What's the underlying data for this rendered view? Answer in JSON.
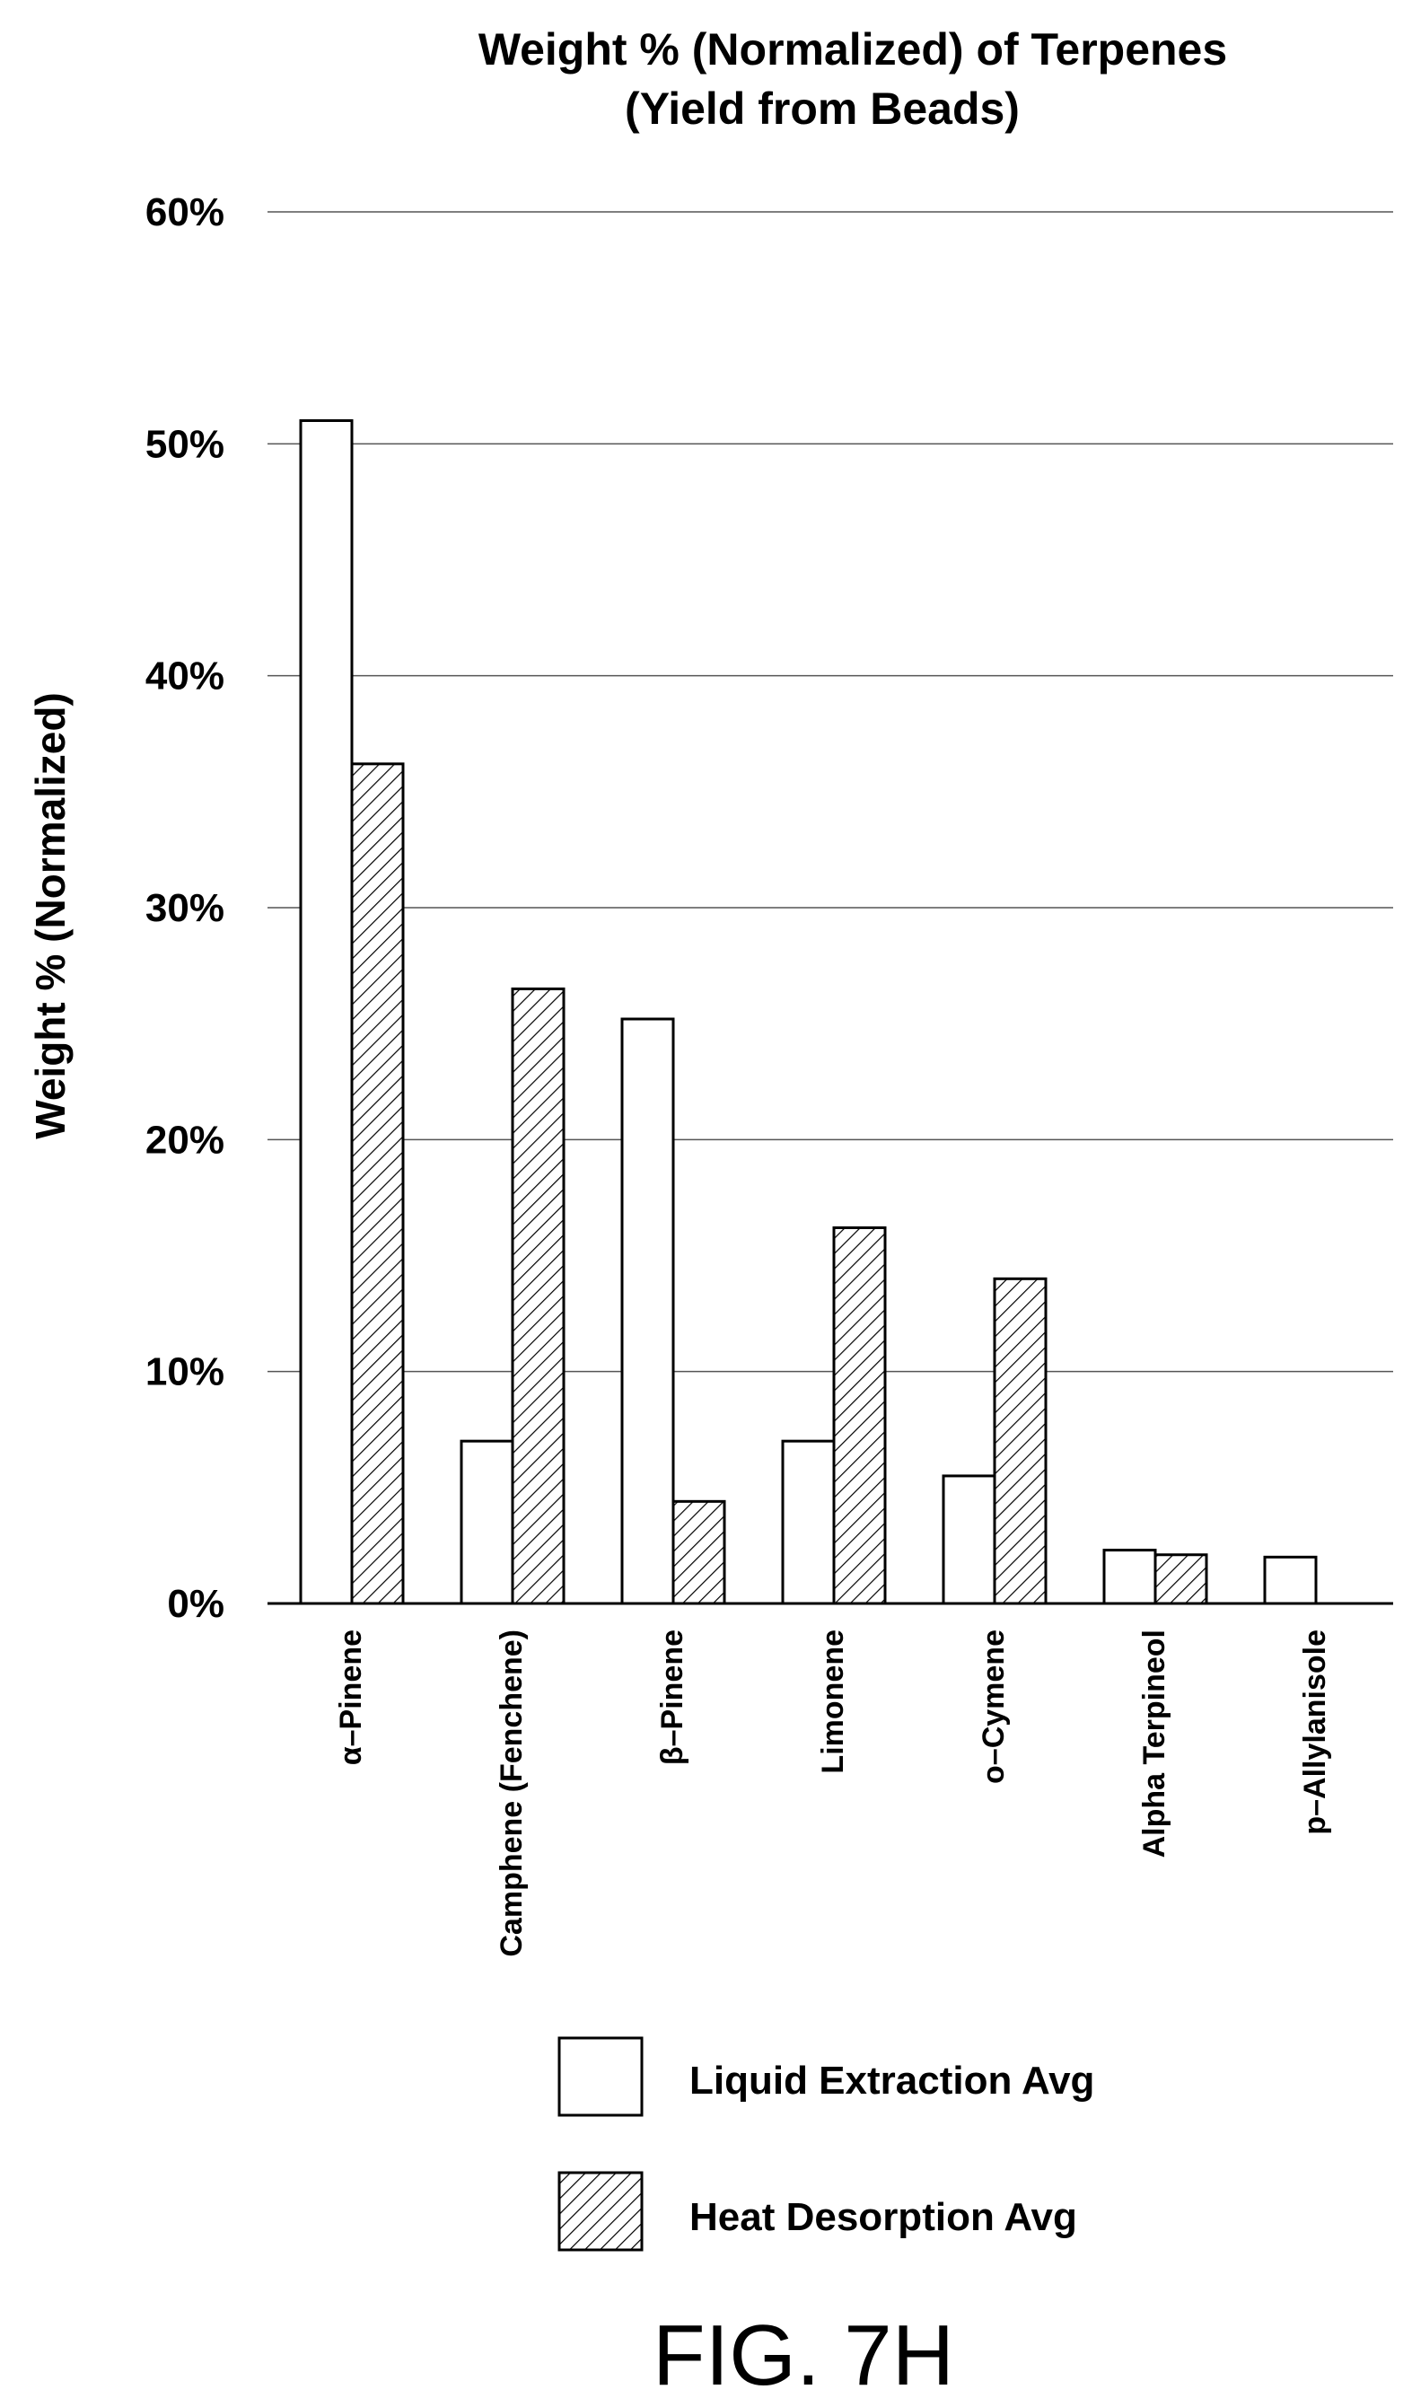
{
  "chart_data": {
    "type": "bar",
    "title": "Weight % (Normalized) of Terpenes",
    "subtitle": "(Yield from Beads)",
    "xlabel": "",
    "ylabel": "Weight % (Normalized)",
    "ylim": [
      0,
      60
    ],
    "yticks": [
      "0%",
      "10%",
      "20%",
      "30%",
      "40%",
      "50%",
      "60%"
    ],
    "grid": true,
    "legend_position": "bottom",
    "categories": [
      "α–Pinene",
      "Camphene (Fenchene)",
      "β–Pinene",
      "Limonene",
      "o–Cymene",
      "Alpha Terpineol",
      "p–Allylanisole"
    ],
    "series": [
      {
        "name": "Liquid Extraction Avg",
        "values": [
          51,
          7,
          25.2,
          7,
          5.5,
          2.3,
          2
        ],
        "fill": "white"
      },
      {
        "name": "Heat Desorption Avg",
        "values": [
          36.2,
          26.5,
          4.4,
          16.2,
          14,
          2.1,
          0
        ],
        "fill": "hatched"
      }
    ]
  },
  "figure_label": "FIG. 7H"
}
